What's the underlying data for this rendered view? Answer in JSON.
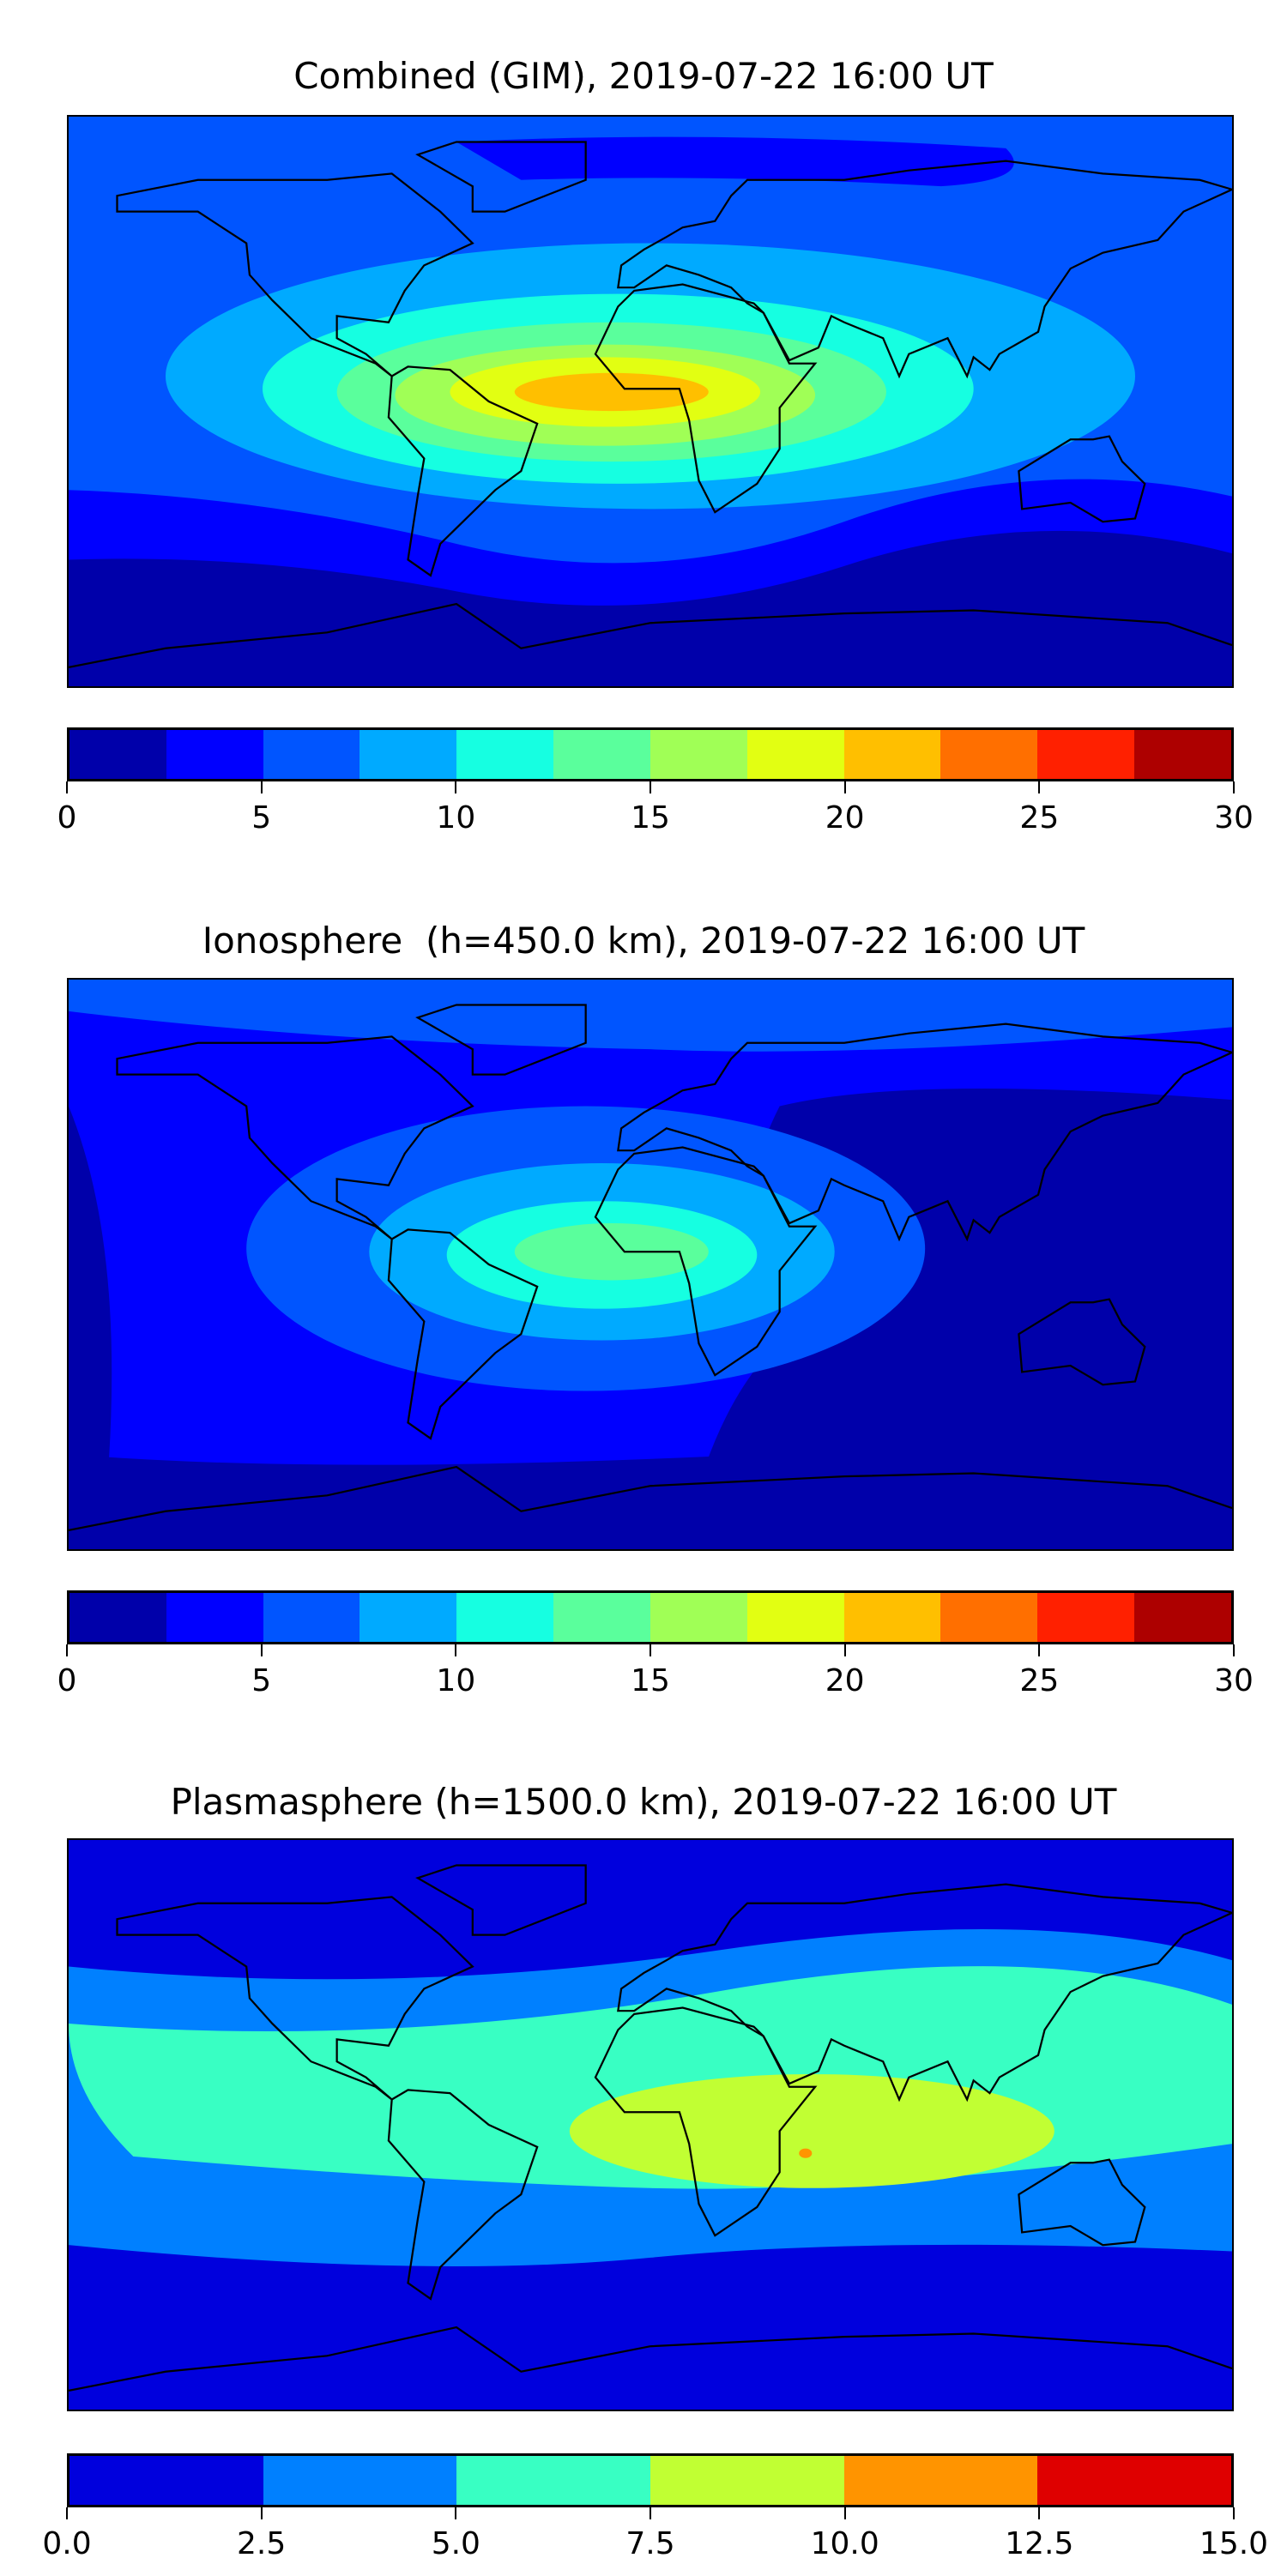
{
  "chart_data": [
    {
      "type": "heatmap",
      "title": "Combined (GIM), 2019-07-22 16:00 UT",
      "levels": [
        0,
        2.5,
        5,
        7.5,
        10,
        12.5,
        15,
        17.5,
        20,
        22.5,
        25,
        27.5,
        30
      ],
      "tick_labels": [
        "0",
        "5",
        "10",
        "15",
        "20",
        "25",
        "30"
      ],
      "ticks": [
        0,
        5,
        10,
        15,
        20,
        25,
        30
      ],
      "vrange": [
        0,
        30
      ],
      "colors": [
        "#0000aa",
        "#0000ff",
        "#0055ff",
        "#00aaff",
        "#16ffe1",
        "#5aff9c",
        "#a0ff56",
        "#e2ff12",
        "#ffbf00",
        "#ff6f00",
        "#ff2000",
        "#ad0000"
      ],
      "peak_location": "South Atlantic / equatorial Africa",
      "max_level": "20-22.5"
    },
    {
      "type": "heatmap",
      "title": "Ionosphere  (h=450.0 km), 2019-07-22 16:00 UT",
      "levels": [
        0,
        2.5,
        5,
        7.5,
        10,
        12.5,
        15,
        17.5,
        20,
        22.5,
        25,
        27.5,
        30
      ],
      "tick_labels": [
        "0",
        "5",
        "10",
        "15",
        "20",
        "25",
        "30"
      ],
      "ticks": [
        0,
        5,
        10,
        15,
        20,
        25,
        30
      ],
      "vrange": [
        0,
        30
      ],
      "colors": [
        "#0000aa",
        "#0000ff",
        "#0055ff",
        "#00aaff",
        "#16ffe1",
        "#5aff9c",
        "#a0ff56",
        "#e2ff12",
        "#ffbf00",
        "#ff6f00",
        "#ff2000",
        "#ad0000"
      ],
      "peak_location": "South Atlantic",
      "max_level": "12.5-15"
    },
    {
      "type": "heatmap",
      "title": "Plasmasphere (h=1500.0 km), 2019-07-22 16:00 UT",
      "levels": [
        0,
        2.5,
        5,
        7.5,
        10,
        12.5,
        15
      ],
      "tick_labels": [
        "0.0",
        "2.5",
        "5.0",
        "7.5",
        "10.0",
        "12.5",
        "15.0"
      ],
      "ticks": [
        0,
        2.5,
        5,
        7.5,
        10,
        12.5,
        15
      ],
      "vrange": [
        0,
        15
      ],
      "colors": [
        "#0000dd",
        "#0080ff",
        "#38ffc3",
        "#c1ff33",
        "#ff9400",
        "#df0000"
      ],
      "peak_location": "Indian Ocean / East Africa",
      "max_level": "10-12.5"
    }
  ]
}
